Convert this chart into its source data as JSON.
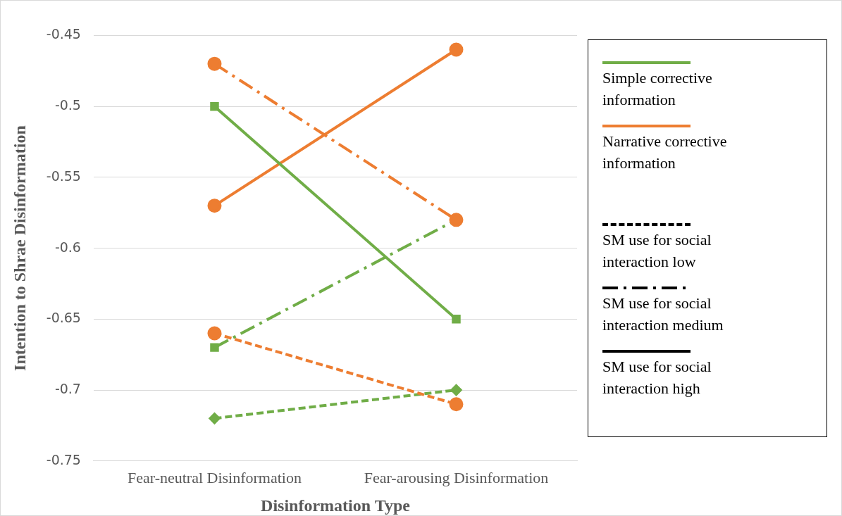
{
  "chart_data": {
    "type": "line",
    "xlabel": "Disinformation Type",
    "ylabel": "Intention to Shrae Disinformation",
    "categories": [
      "Fear-neutral Disinformation",
      "Fear-arousing Disinformation"
    ],
    "series": [
      {
        "color": "#70ad47",
        "values": [
          -0.5,
          -0.65
        ],
        "line_style": "solid",
        "marker": "square"
      },
      {
        "color": "#ed7d31",
        "values": [
          -0.57,
          -0.46
        ],
        "line_style": "solid",
        "marker": "circle"
      },
      {
        "color": "#ed7d31",
        "values": [
          -0.47,
          -0.58
        ],
        "line_style": "dashdot",
        "marker": "circle"
      },
      {
        "color": "#70ad47",
        "values": [
          -0.67,
          -0.58
        ],
        "line_style": "dashdot",
        "marker": "square"
      },
      {
        "color": "#ed7d31",
        "values": [
          -0.66,
          -0.71
        ],
        "line_style": "dashed",
        "marker": "circle"
      },
      {
        "color": "#70ad47",
        "values": [
          -0.72,
          -0.7
        ],
        "line_style": "dashed",
        "marker": "diamond"
      }
    ],
    "ylim": [
      -0.75,
      -0.45
    ],
    "yticks": [
      -0.75,
      -0.7,
      -0.65,
      -0.6,
      -0.55,
      -0.5,
      -0.45
    ],
    "grid": "y",
    "annotations": [
      "Simple corrective information",
      "Narrative corrective information",
      "SM use for social interaction low",
      "SM use for social interaction medium",
      "SM use for social interaction high"
    ]
  }
}
